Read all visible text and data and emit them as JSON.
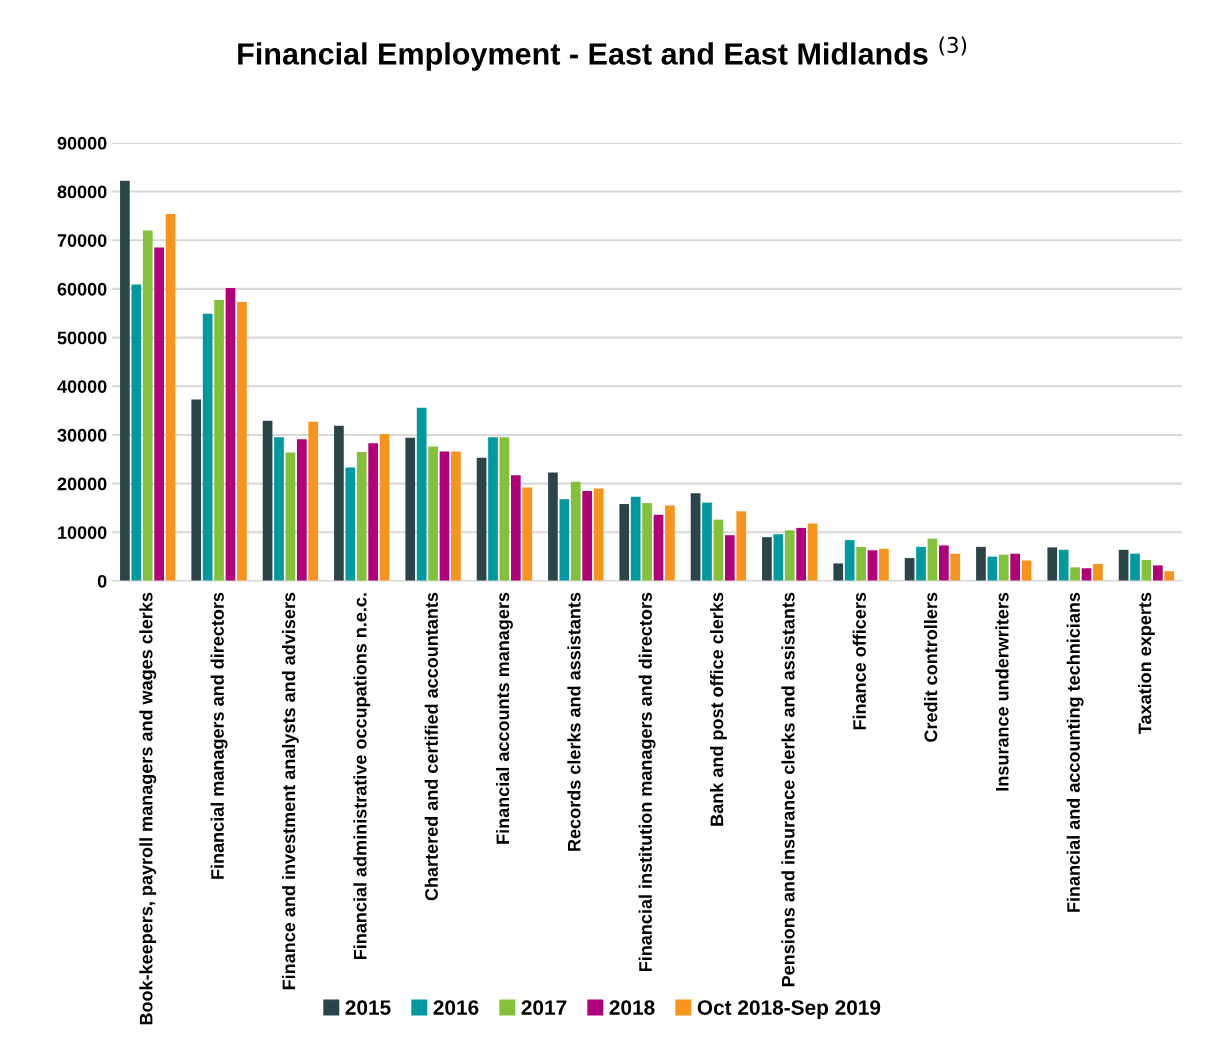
{
  "chart_data": {
    "type": "bar",
    "title": "Financial Employment - East and East Midlands $^{(3)}$",
    "categories": [
      "Book-keepers, payroll managers and wages clerks",
      "Financial managers and directors",
      "Finance and investment analysts and advisers",
      "Financial administrative occupations n.e.c.",
      "Chartered and certified accountants",
      "Financial accounts managers",
      "Records clerks and assistants",
      "Financial institution managers and directors",
      "Bank and post office clerks",
      "Pensions and insurance clerks and assistants",
      "Finance officers",
      "Credit controllers",
      "Insurance underwriters",
      "Financial and accounting technicians",
      "Taxation experts"
    ],
    "series": [
      {
        "name": "2015",
        "color": "#2b4447",
        "values": [
          82200,
          37300,
          32900,
          31900,
          29400,
          25300,
          22300,
          15800,
          18000,
          9000,
          3600,
          4700,
          7000,
          6900,
          6400
        ]
      },
      {
        "name": "2016",
        "color": "#00999f",
        "values": [
          60900,
          54900,
          29500,
          23300,
          35600,
          29500,
          16800,
          17300,
          16100,
          9600,
          8400,
          7000,
          5000,
          6400,
          5600
        ]
      },
      {
        "name": "2017",
        "color": "#84c13b",
        "values": [
          72000,
          57700,
          26400,
          26500,
          27600,
          29500,
          20400,
          16000,
          12600,
          10400,
          7000,
          8700,
          5400,
          2800,
          4300
        ]
      },
      {
        "name": "2018",
        "color": "#b0007a",
        "values": [
          68500,
          60200,
          29100,
          28300,
          26600,
          21700,
          18500,
          13600,
          9400,
          10900,
          6300,
          7300,
          5600,
          2600,
          3200
        ]
      },
      {
        "name": "Oct 2018-Sep 2019",
        "color": "#f7941d",
        "values": [
          75400,
          57300,
          32700,
          30200,
          26600,
          19200,
          19000,
          15500,
          14300,
          11800,
          6600,
          5600,
          4200,
          3500,
          2000
        ]
      }
    ],
    "ylim": [
      0,
      90000
    ],
    "yticks": [
      0,
      10000,
      20000,
      30000,
      40000,
      50000,
      60000,
      70000,
      80000,
      90000
    ],
    "grid": "y",
    "legend": "bottom"
  }
}
